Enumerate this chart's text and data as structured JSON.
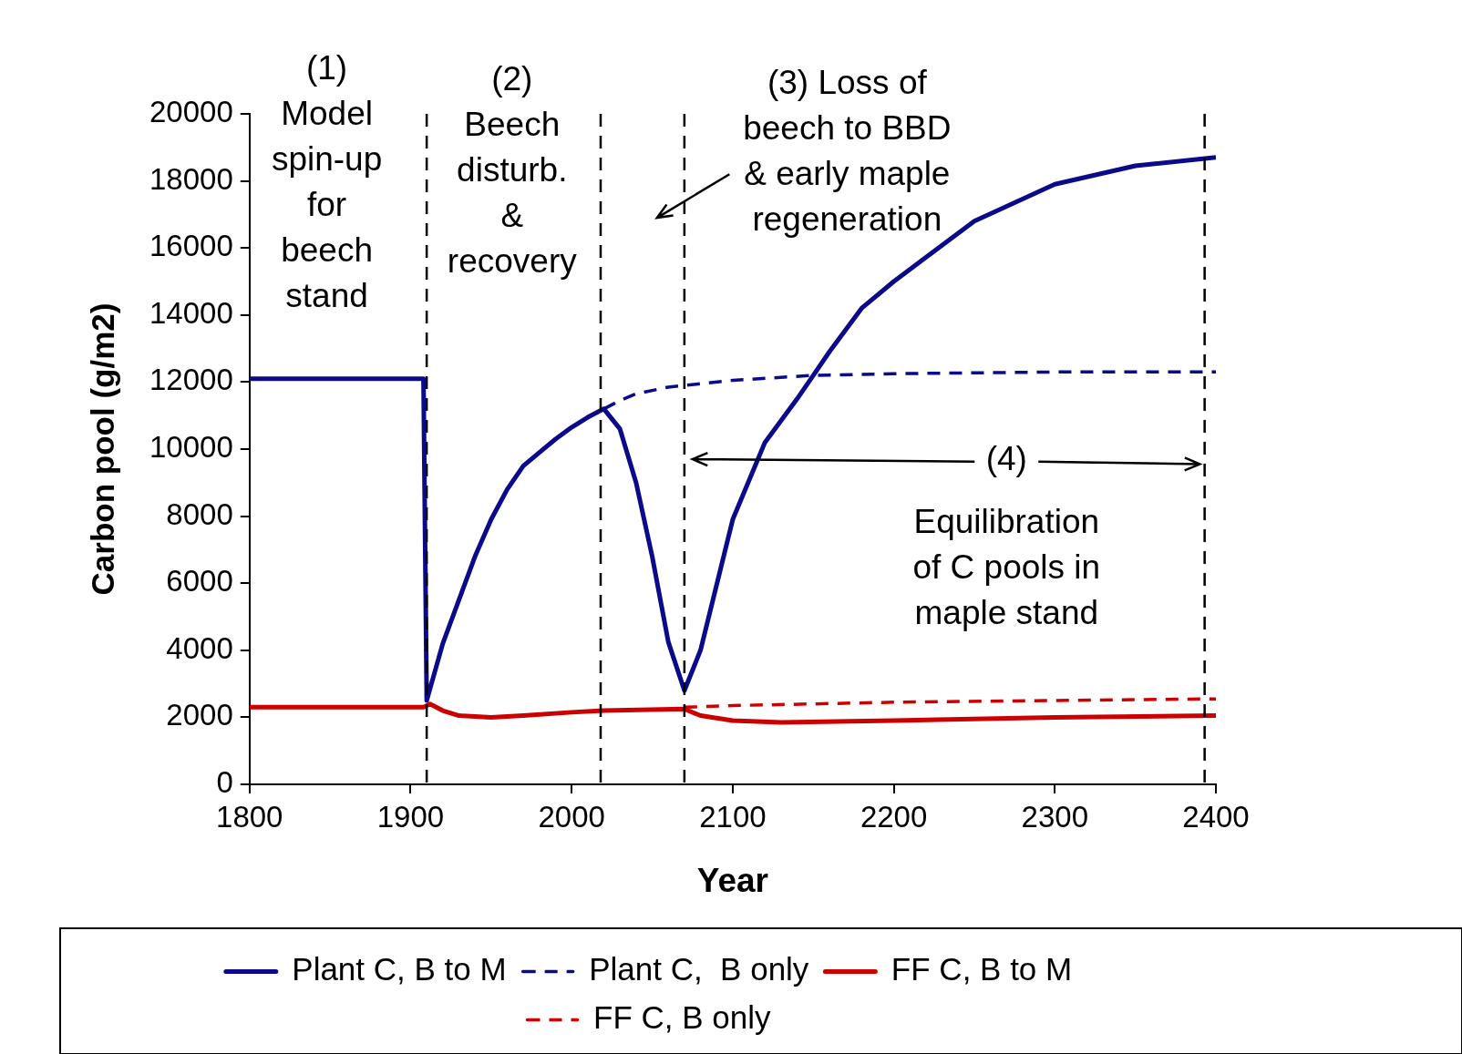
{
  "chart_data": {
    "type": "line",
    "xlabel": "Year",
    "ylabel": "Carbon pool (g/m2)",
    "xlim": [
      1800,
      2400
    ],
    "xticks": [
      1800,
      1900,
      2000,
      2100,
      2200,
      2300,
      2400
    ],
    "ylim": [
      0,
      20000
    ],
    "yticks": [
      0,
      2000,
      4000,
      6000,
      8000,
      10000,
      12000,
      14000,
      16000,
      18000,
      20000
    ],
    "grid": false,
    "legend": "bottom",
    "marker": "none",
    "series": [
      {
        "name": "Plant C, B to M",
        "color": "#0a0a8a",
        "line_style": "solid",
        "x": [
          1800,
          1908,
          1910,
          1920,
          1930,
          1940,
          1950,
          1960,
          1970,
          1980,
          1990,
          2000,
          2010,
          2020,
          2030,
          2040,
          2050,
          2060,
          2070,
          2080,
          2100,
          2120,
          2140,
          2150,
          2160,
          2180,
          2200,
          2250,
          2300,
          2350,
          2400
        ],
        "values": [
          12100,
          12100,
          2500,
          4200,
          5500,
          6800,
          7900,
          8800,
          9500,
          9900,
          10300,
          10650,
          10950,
          11200,
          10600,
          9000,
          6800,
          4250,
          2800,
          4000,
          7900,
          10200,
          11500,
          12200,
          12900,
          14200,
          15000,
          16800,
          17900,
          18450,
          18700
        ]
      },
      {
        "name": "Plant C,  B only",
        "color": "#0a0a8a",
        "line_style": "dashed",
        "x": [
          2020,
          2030,
          2040,
          2060,
          2080,
          2100,
          2150,
          2200,
          2300,
          2400
        ],
        "values": [
          11200,
          11450,
          11650,
          11850,
          11950,
          12050,
          12200,
          12250,
          12300,
          12300
        ]
      },
      {
        "name": "FF C, B to M",
        "color": "#cc0000",
        "line_style": "solid",
        "x": [
          1800,
          1908,
          1912,
          1920,
          1930,
          1950,
          1970,
          2000,
          2020,
          2070,
          2080,
          2100,
          2130,
          2200,
          2300,
          2400
        ],
        "values": [
          2300,
          2300,
          2400,
          2200,
          2050,
          2000,
          2050,
          2150,
          2200,
          2250,
          2050,
          1900,
          1850,
          1900,
          2000,
          2050
        ]
      },
      {
        "name": "FF C, B only",
        "color": "#cc0000",
        "line_style": "dashed",
        "x": [
          2070,
          2100,
          2200,
          2300,
          2400
        ],
        "values": [
          2300,
          2350,
          2450,
          2500,
          2550
        ]
      }
    ],
    "ref_lines": [
      {
        "axis": "x",
        "value": 1910,
        "color": "#000000",
        "line_style": "dashed"
      },
      {
        "axis": "x",
        "value": 2018,
        "color": "#000000",
        "line_style": "dashed"
      },
      {
        "axis": "x",
        "value": 2070,
        "color": "#000000",
        "line_style": "dashed"
      },
      {
        "axis": "x",
        "value": 2393,
        "color": "#000000",
        "line_style": "dashed"
      }
    ],
    "annotations": [
      "(1)\nModel\nspin-up\nfor\nbeech\nstand",
      "(2)\nBeech\ndisturb.\n&\nrecovery",
      "(3) Loss of\nbeech to BBD\n& early maple\nregeneration",
      "(4)",
      "Equilibration\nof C pools in\nmaple stand"
    ]
  }
}
